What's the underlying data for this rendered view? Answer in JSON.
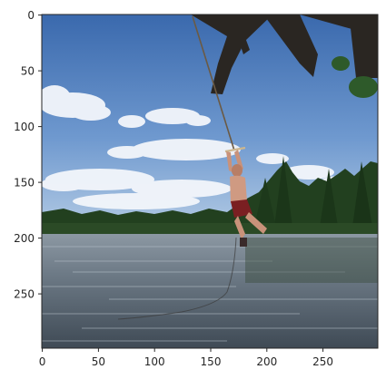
{
  "figure": {
    "scene": "person-swinging-on-rope-over-lake",
    "colors": {
      "sky_top": "#3f6fb2",
      "sky_bottom": "#a9c6e6",
      "cloud": "#f2f5fa",
      "water": "#5f6f7c",
      "treeline": "#1f3d1c",
      "axis": "#262626"
    }
  },
  "axes": {
    "x": {
      "range": [
        0,
        299
      ],
      "ticks": [
        "0",
        "50",
        "100",
        "150",
        "200",
        "250"
      ]
    },
    "y": {
      "range": [
        0,
        299
      ],
      "ticks": [
        "0",
        "50",
        "100",
        "150",
        "200",
        "250"
      ]
    }
  }
}
